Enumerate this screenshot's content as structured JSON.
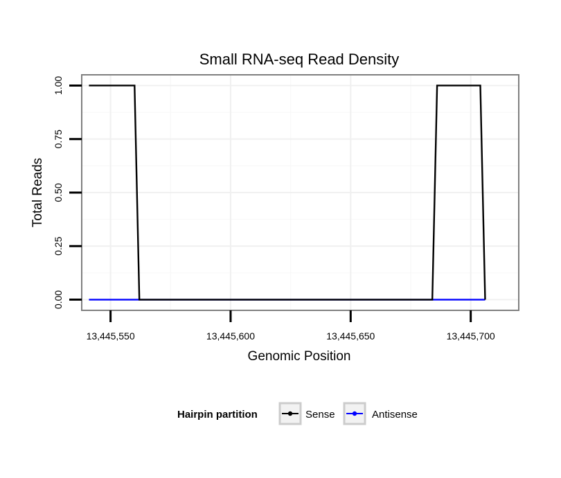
{
  "chart_data": {
    "type": "line",
    "title": "Small RNA-seq Read Density",
    "xlabel": "Genomic Position",
    "ylabel": "Total Reads",
    "xlim": [
      13445538,
      13445720
    ],
    "ylim": [
      -0.05,
      1.05
    ],
    "x_ticks": [
      13445550,
      13445600,
      13445650,
      13445700
    ],
    "x_tick_labels": [
      "13,445,550",
      "13,445,600",
      "13,445,650",
      "13,445,700"
    ],
    "y_ticks": [
      0,
      0.25,
      0.5,
      0.75,
      1.0
    ],
    "y_tick_labels": [
      "0.00",
      "0.25",
      "0.50",
      "0.75",
      "1.00"
    ],
    "grid": true,
    "legend": {
      "title": "Hairpin partition",
      "position": "bottom"
    },
    "series": [
      {
        "name": "Sense",
        "color": "#000000",
        "x": [
          13445541,
          13445560,
          13445562,
          13445684,
          13445686,
          13445704,
          13445706
        ],
        "y": [
          1,
          1,
          0,
          0,
          1,
          1,
          0
        ]
      },
      {
        "name": "Antisense",
        "color": "#0000ff",
        "x": [
          13445541,
          13445562,
          13445684,
          13445706
        ],
        "y": [
          0,
          0,
          0,
          0
        ]
      }
    ]
  }
}
